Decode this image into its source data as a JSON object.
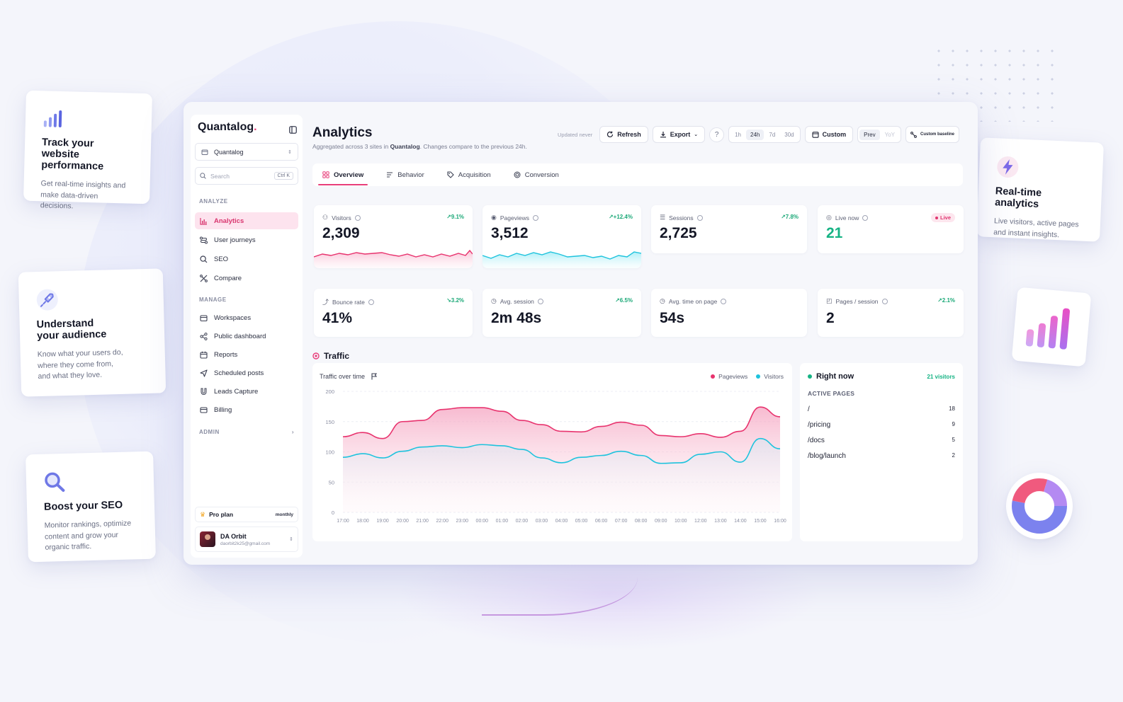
{
  "features": [
    {
      "icon": "bar-chart-icon",
      "title_1": "Track your",
      "title_2": "website performance",
      "text_1": "Get real-time insights and",
      "text_2": "make data-driven decisions."
    },
    {
      "icon": "rocket-icon",
      "title_1": "Understand",
      "title_2": "your audience",
      "text_1": "Know what your users do,",
      "text_2": "where they come from,",
      "text_3": "and what they love."
    },
    {
      "icon": "magnifier-icon",
      "title_1": "Boost your SEO",
      "text_1": "Monitor rankings, optimize",
      "text_2": "content and grow your",
      "text_3": "organic traffic."
    },
    {
      "icon": "lightning-icon",
      "title_1": "Real-time analytics",
      "text_1": "Live visitors, active pages",
      "text_2": "and instant insights."
    }
  ],
  "sidebar": {
    "brand": "Quantalog",
    "brand_dot": ".",
    "workspace": "Quantalog",
    "search_placeholder": "Search",
    "search_shortcut": "Ctrl K",
    "analyze_label": "ANALYZE",
    "analyze_items": [
      "Analytics",
      "User journeys",
      "SEO",
      "Compare"
    ],
    "manage_label": "MANAGE",
    "manage_items": [
      "Workspaces",
      "Public dashboard",
      "Reports",
      "Scheduled posts",
      "Leads Capture",
      "Billing"
    ],
    "admin_label": "ADMIN",
    "plan": "Pro plan",
    "plan_cycle": "monthly",
    "user_name": "DA Orbit",
    "user_email": "daorbit2k25@gmail.com"
  },
  "header": {
    "title": "Analytics",
    "subtitle_pre": "Aggregated across 3 sites in ",
    "subtitle_org": "Quantalog",
    "subtitle_post": ". Changes compare to the previous 24h.",
    "updated": "Updated never",
    "refresh": "Refresh",
    "export": "Export",
    "ranges": [
      "1h",
      "24h",
      "7d",
      "30d"
    ],
    "active_range": "24h",
    "custom": "Custom",
    "compare": [
      "Prev",
      "YoY"
    ],
    "baseline": "Custom baseline"
  },
  "tabs": [
    "Overview",
    "Behavior",
    "Acquisition",
    "Conversion"
  ],
  "kpis": [
    {
      "label": "Visitors",
      "value": "2,309",
      "delta": "↗9.1%"
    },
    {
      "label": "Pageviews",
      "value": "3,512",
      "delta": "↗+12.4%"
    },
    {
      "label": "Sessions",
      "value": "2,725",
      "delta": "↗7.8%"
    },
    {
      "label": "Live now",
      "value": "21",
      "badge": "Live"
    },
    {
      "label": "Bounce rate",
      "value": "41%",
      "delta": "↘3.2%"
    },
    {
      "label": "Avg. session",
      "value": "2m 48s",
      "delta": "↗6.5%"
    },
    {
      "label": "Avg. time on page",
      "value": "54s"
    },
    {
      "label": "Pages / session",
      "value": "2",
      "delta": "↗2.1%"
    }
  ],
  "traffic": {
    "section_title": "Traffic",
    "chart_title": "Traffic over time",
    "legend": [
      "Pageviews",
      "Visitors"
    ]
  },
  "chart_data": {
    "type": "area",
    "categories": [
      "17:00",
      "18:00",
      "19:00",
      "20:00",
      "21:00",
      "22:00",
      "23:00",
      "00:00",
      "01:00",
      "02:00",
      "03:00",
      "04:00",
      "05:00",
      "06:00",
      "07:00",
      "08:00",
      "09:00",
      "10:00",
      "12:00",
      "13:00",
      "14:00",
      "15:00",
      "16:00"
    ],
    "series": [
      {
        "name": "Pageviews",
        "color": "#e8336e",
        "values": [
          125,
          132,
          122,
          150,
          152,
          170,
          173,
          173,
          167,
          152,
          145,
          134,
          133,
          142,
          149,
          144,
          127,
          125,
          130,
          124,
          134,
          174,
          158
        ]
      },
      {
        "name": "Visitors",
        "color": "#1ec3dd",
        "values": [
          91,
          97,
          90,
          101,
          108,
          110,
          107,
          112,
          110,
          104,
          90,
          82,
          91,
          94,
          101,
          94,
          81,
          82,
          96,
          100,
          83,
          122,
          105
        ]
      }
    ],
    "yticks": [
      0,
      50,
      100,
      150,
      200
    ],
    "ylim": [
      0,
      200
    ]
  },
  "right_now": {
    "title": "Right now",
    "count": "21 visitors",
    "subtitle": "ACTIVE PAGES",
    "pages": [
      {
        "path": "/",
        "count": "18"
      },
      {
        "path": "/pricing",
        "count": "9"
      },
      {
        "path": "/docs",
        "count": "5"
      },
      {
        "path": "/blog/launch",
        "count": "2"
      }
    ]
  },
  "colors": {
    "accent": "#e83e7a",
    "positive": "#16b384",
    "visitors": "#1ec3dd",
    "pageviews": "#e8336e"
  }
}
